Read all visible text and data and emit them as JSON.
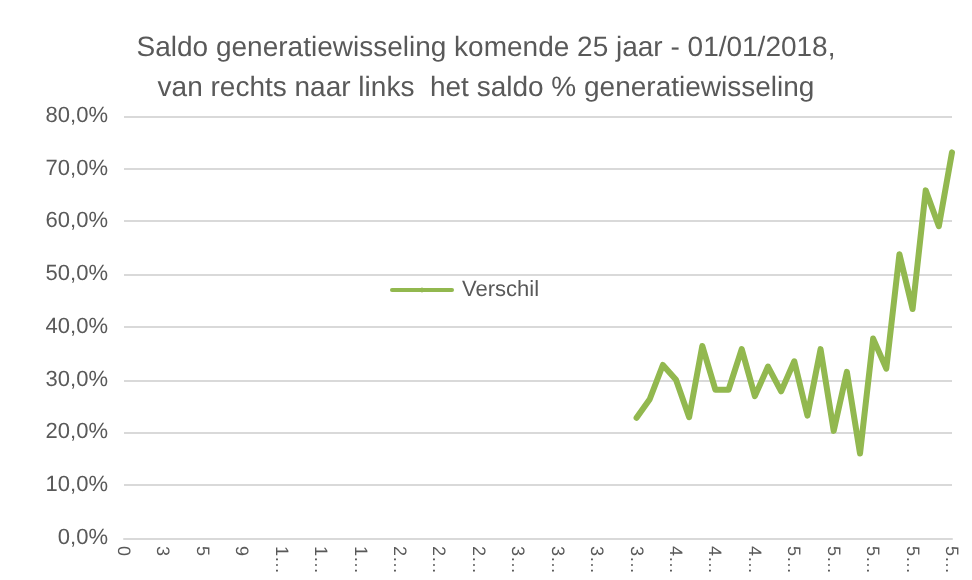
{
  "chart_data": {
    "type": "line",
    "title": "Saldo generatiewisseling komende 25 jaar - 01/01/2018,\nvan rechts naar links  het saldo % generatiewisseling",
    "categories": [
      "0",
      null,
      null,
      "3",
      null,
      null,
      "5",
      null,
      null,
      "9",
      null,
      null,
      "1…",
      null,
      null,
      "1…",
      null,
      null,
      "1…",
      null,
      null,
      "2…",
      null,
      null,
      "2…",
      null,
      null,
      "2…",
      null,
      null,
      "3…",
      null,
      null,
      "3…",
      null,
      null,
      "3…",
      null,
      null,
      "3…",
      null,
      null,
      "4…",
      null,
      null,
      "4…",
      null,
      null,
      "4…",
      null,
      null,
      "5…",
      null,
      null,
      "5…",
      null,
      null,
      "5…",
      null,
      null,
      "5…",
      null,
      null,
      "5…"
    ],
    "series": [
      {
        "name": "Verschil",
        "color": "#92b84f",
        "values": [
          null,
          null,
          null,
          null,
          null,
          null,
          null,
          null,
          null,
          null,
          null,
          null,
          null,
          null,
          null,
          null,
          null,
          null,
          null,
          null,
          null,
          null,
          null,
          null,
          null,
          null,
          null,
          null,
          null,
          null,
          null,
          null,
          null,
          null,
          null,
          null,
          null,
          null,
          null,
          22.8,
          26.3,
          32.8,
          30.0,
          22.9,
          36.4,
          28.1,
          28.1,
          35.8,
          26.9,
          32.5,
          27.8,
          33.5,
          23.2,
          35.8,
          20.3,
          31.5,
          16.0,
          37.8,
          32.1,
          53.8,
          43.4,
          65.9,
          59.1,
          73.1
        ]
      }
    ],
    "ylim": [
      0,
      80
    ],
    "yticks": [
      {
        "value": 0,
        "label": "0,0%"
      },
      {
        "value": 10,
        "label": "10,0%"
      },
      {
        "value": 20,
        "label": "20,0%"
      },
      {
        "value": 30,
        "label": "30,0%"
      },
      {
        "value": 40,
        "label": "40,0%"
      },
      {
        "value": 50,
        "label": "50,0%"
      },
      {
        "value": 60,
        "label": "60,0%"
      },
      {
        "value": 70,
        "label": "70,0%"
      },
      {
        "value": 80,
        "label": "80,0%"
      }
    ],
    "grid": "y",
    "legend": "center",
    "marker": "none",
    "line_style": "solid"
  }
}
